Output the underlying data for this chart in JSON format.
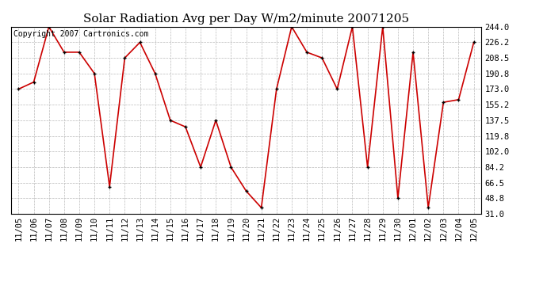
{
  "title": "Solar Radiation Avg per Day W/m2/minute 20071205",
  "copyright": "Copyright 2007 Cartronics.com",
  "dates": [
    "11/05",
    "11/06",
    "11/07",
    "11/08",
    "11/09",
    "11/10",
    "11/11",
    "11/12",
    "11/13",
    "11/14",
    "11/15",
    "11/16",
    "11/17",
    "11/18",
    "11/19",
    "11/20",
    "11/21",
    "11/22",
    "11/23",
    "11/24",
    "11/25",
    "11/26",
    "11/27",
    "11/28",
    "11/29",
    "11/30",
    "12/01",
    "12/02",
    "12/03",
    "12/04",
    "12/05"
  ],
  "values": [
    173.0,
    181.0,
    244.0,
    215.0,
    215.0,
    190.8,
    62.0,
    208.5,
    226.2,
    190.8,
    137.5,
    130.0,
    84.2,
    137.5,
    84.2,
    57.0,
    38.0,
    173.0,
    244.0,
    215.0,
    208.5,
    173.0,
    244.0,
    84.2,
    244.0,
    48.8,
    215.0,
    38.0,
    158.0,
    161.0,
    226.2
  ],
  "ylim_min": 31.0,
  "ylim_max": 244.0,
  "yticks": [
    31.0,
    48.8,
    66.5,
    84.2,
    102.0,
    119.8,
    137.5,
    155.2,
    173.0,
    190.8,
    208.5,
    226.2,
    244.0
  ],
  "line_color": "#cc0000",
  "marker_color": "#000000",
  "bg_color": "#ffffff",
  "grid_color": "#bbbbbb",
  "title_fontsize": 11,
  "copyright_fontsize": 7,
  "tick_fontsize": 7.5,
  "fig_width": 6.9,
  "fig_height": 3.75,
  "dpi": 100
}
